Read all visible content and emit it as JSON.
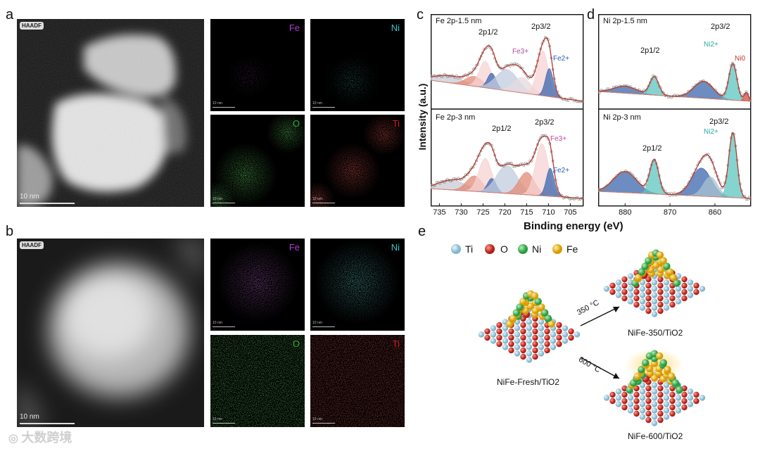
{
  "panels": {
    "a": {
      "label": "a",
      "haadf": "HAADF",
      "scale": "10 nm"
    },
    "b": {
      "label": "b",
      "haadf": "HAADF",
      "scale": "10 nm"
    },
    "c": {
      "label": "c",
      "top_title": "Fe 2p-1.5 nm",
      "bottom_title": "Fe 2p-3 nm"
    },
    "d": {
      "label": "d",
      "top_title": "Ni 2p-1.5 nm",
      "bottom_title": "Ni 2p-3 nm"
    },
    "e": {
      "label": "e"
    }
  },
  "maps": {
    "fe": "Fe",
    "ni": "Ni",
    "o": "O",
    "ti": "Ti",
    "scale": "10 nm",
    "colors": {
      "fe": "#b23bd6",
      "ni": "#2fc9c9",
      "o": "#2faa2f",
      "ti": "#d11e1e"
    }
  },
  "xps": {
    "ylabel": "Intensity (a.u.)",
    "xlabel": "Binding energy (eV)",
    "fe_ticks": [
      "735",
      "730",
      "725",
      "720",
      "715",
      "710",
      "705"
    ],
    "ni_ticks": [
      "880",
      "870",
      "860"
    ],
    "labels": {
      "p12": "2p1/2",
      "p32": "2p3/2",
      "fe3": "Fe3+",
      "fe2": "Fe2+",
      "ni2": "Ni2+",
      "ni0": "Ni0",
      "ni2b": "Ni2+"
    }
  },
  "chart_data": [
    {
      "type": "line",
      "title": "Fe 2p-1.5 nm",
      "xlabel": "Binding energy (eV)",
      "ylabel": "Intensity (a.u.)",
      "xlim": [
        737,
        702
      ],
      "x_ticks": [
        735,
        730,
        725,
        720,
        715,
        710,
        705
      ],
      "series": [
        {
          "name": "2p1/2",
          "peak_x": 724.5
        },
        {
          "name": "2p3/2",
          "peak_x": 711
        },
        {
          "name": "Fe3+",
          "peak_x": 713.5
        },
        {
          "name": "Fe2+",
          "peak_x": 710
        }
      ]
    },
    {
      "type": "line",
      "title": "Fe 2p-3 nm",
      "xlabel": "Binding energy (eV)",
      "ylabel": "Intensity (a.u.)",
      "xlim": [
        737,
        702
      ],
      "x_ticks": [
        735,
        730,
        725,
        720,
        715,
        710,
        705
      ],
      "series": [
        {
          "name": "2p1/2",
          "peak_x": 724.5
        },
        {
          "name": "2p3/2",
          "peak_x": 711
        },
        {
          "name": "Fe3+",
          "peak_x": 712.5
        },
        {
          "name": "Fe2+",
          "peak_x": 710
        }
      ]
    },
    {
      "type": "line",
      "title": "Ni 2p-1.5 nm",
      "xlabel": "Binding energy (eV)",
      "ylabel": "Intensity (a.u.)",
      "xlim": [
        886,
        852
      ],
      "x_ticks": [
        880,
        870,
        860
      ],
      "series": [
        {
          "name": "2p1/2",
          "peak_x": 873.5
        },
        {
          "name": "2p3/2",
          "peak_x": 856
        },
        {
          "name": "Ni2+",
          "peak_x": 856
        },
        {
          "name": "Ni0",
          "peak_x": 853
        }
      ]
    },
    {
      "type": "line",
      "title": "Ni 2p-3 nm",
      "xlabel": "Binding energy (eV)",
      "ylabel": "Intensity (a.u.)",
      "xlim": [
        886,
        852
      ],
      "x_ticks": [
        880,
        870,
        860
      ],
      "series": [
        {
          "name": "2p1/2",
          "peak_x": 873.5
        },
        {
          "name": "2p3/2",
          "peak_x": 856
        },
        {
          "name": "Ni2+",
          "peak_x": 856
        }
      ]
    }
  ],
  "schematic": {
    "legend": [
      "Ti",
      "O",
      "Ni",
      "Fe"
    ],
    "legend_colors": [
      "#9fcfe0",
      "#d4302c",
      "#44b45a",
      "#f0b90f"
    ],
    "fresh": "NiFe-Fresh/TiO2",
    "t350": "NiFe-350/TiO2",
    "t600": "NiFe-600/TiO2",
    "arrow350": "350 °C",
    "arrow600": "600 °C"
  },
  "watermark": "大数跨境"
}
